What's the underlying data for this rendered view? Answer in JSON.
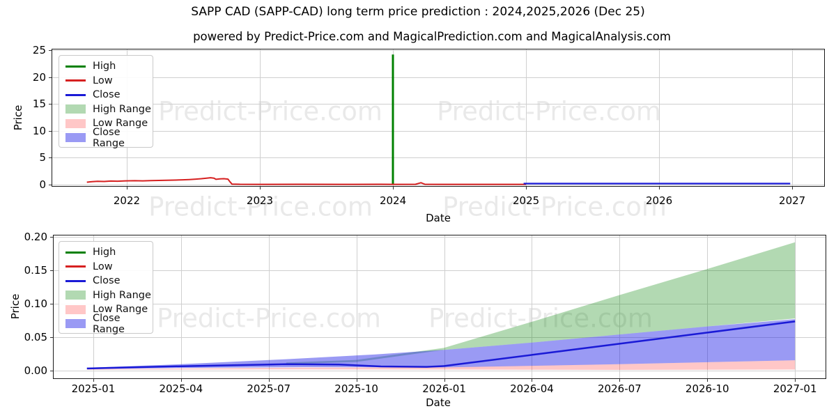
{
  "figure": {
    "title": "SAPP CAD (SAPP-CAD) long term price prediction : 2024,2025,2026 (Dec 25)",
    "subtitle": "powered by Predict-Price.com and MagicalPrediction.com and MagicalAnalysis.com",
    "watermark": "Predict-Price.com",
    "background": "#ffffff"
  },
  "colors": {
    "high": "#008000",
    "low": "#d62020",
    "close": "#1a1ad6",
    "high_fill": "rgba(0,128,0,0.30)",
    "low_fill": "rgba(255,40,40,0.26)",
    "close_fill": "rgba(25,25,230,0.44)",
    "grid": "#cfcfcf",
    "frame": "#1a1a1a",
    "text": "#000000"
  },
  "legend": {
    "items": [
      {
        "label": "High",
        "swatch": "line",
        "color_key": "high"
      },
      {
        "label": "Low",
        "swatch": "line",
        "color_key": "low"
      },
      {
        "label": "Close",
        "swatch": "line",
        "color_key": "close"
      },
      {
        "label": "High Range",
        "swatch": "patch",
        "color_key": "high_fill"
      },
      {
        "label": "Low Range",
        "swatch": "patch",
        "color_key": "low_fill"
      },
      {
        "label": "Close Range",
        "swatch": "patch",
        "color_key": "close_fill"
      }
    ]
  },
  "chart_data": [
    {
      "type": "line",
      "name": "full-history-price-chart",
      "xlabel": "Date",
      "ylabel": "Price",
      "grid": true,
      "legend_position": "upper left",
      "xlim": [
        2021.44,
        2027.24
      ],
      "ylim": [
        -0.26,
        25.15
      ],
      "xticks": [
        {
          "label": "2022",
          "x": 2022
        },
        {
          "label": "2023",
          "x": 2023
        },
        {
          "label": "2024",
          "x": 2024
        },
        {
          "label": "2025",
          "x": 2025
        },
        {
          "label": "2026",
          "x": 2026
        },
        {
          "label": "2027",
          "x": 2027
        }
      ],
      "yticks": [
        {
          "label": "0",
          "y": 0
        },
        {
          "label": "5",
          "y": 5
        },
        {
          "label": "10",
          "y": 10
        },
        {
          "label": "15",
          "y": 15
        },
        {
          "label": "20",
          "y": 20
        },
        {
          "label": "25",
          "y": 25
        }
      ],
      "series": [
        {
          "name": "high",
          "mode": "line",
          "color_key": "high",
          "width": 3,
          "points": [
            [
              2024.0,
              0.06
            ],
            [
              2024.0,
              24.2
            ]
          ]
        },
        {
          "name": "low",
          "mode": "line",
          "color_key": "low",
          "width": 2,
          "points": [
            [
              2021.7,
              0.45
            ],
            [
              2021.74,
              0.55
            ],
            [
              2021.78,
              0.62
            ],
            [
              2021.83,
              0.58
            ],
            [
              2021.88,
              0.66
            ],
            [
              2021.93,
              0.64
            ],
            [
              2021.99,
              0.7
            ],
            [
              2022.06,
              0.72
            ],
            [
              2022.12,
              0.7
            ],
            [
              2022.18,
              0.75
            ],
            [
              2022.24,
              0.78
            ],
            [
              2022.3,
              0.82
            ],
            [
              2022.36,
              0.84
            ],
            [
              2022.42,
              0.9
            ],
            [
              2022.47,
              0.94
            ],
            [
              2022.52,
              1.02
            ],
            [
              2022.56,
              1.1
            ],
            [
              2022.6,
              1.2
            ],
            [
              2022.63,
              1.28
            ],
            [
              2022.655,
              1.2
            ],
            [
              2022.67,
              0.98
            ],
            [
              2022.7,
              1.08
            ],
            [
              2022.73,
              1.1
            ],
            [
              2022.76,
              1.02
            ],
            [
              2022.775,
              0.55
            ],
            [
              2022.79,
              0.1
            ],
            [
              2022.85,
              0.06
            ],
            [
              2023.0,
              0.05
            ],
            [
              2023.3,
              0.06
            ],
            [
              2023.6,
              0.05
            ],
            [
              2023.9,
              0.06
            ],
            [
              2024.0,
              0.05
            ],
            [
              2024.17,
              0.06
            ],
            [
              2024.21,
              0.35
            ],
            [
              2024.24,
              0.06
            ],
            [
              2024.4,
              0.05
            ],
            [
              2024.7,
              0.05
            ],
            [
              2025.0,
              0.05
            ]
          ]
        },
        {
          "name": "close",
          "mode": "line",
          "color_key": "close",
          "width": 2.2,
          "points": [
            [
              2024.982,
              0.19
            ],
            [
              2026.985,
              0.19
            ]
          ]
        }
      ]
    },
    {
      "type": "line",
      "name": "forecast-zoom-chart",
      "xlabel": "Date",
      "ylabel": "Price",
      "grid": true,
      "legend_position": "upper left",
      "xlim": [
        2024.887,
        2027.087
      ],
      "ylim": [
        -0.0115,
        0.2021
      ],
      "xticks": [
        {
          "label": "2025-01",
          "x": 2025.0
        },
        {
          "label": "2025-04",
          "x": 2025.25
        },
        {
          "label": "2025-07",
          "x": 2025.5
        },
        {
          "label": "2025-10",
          "x": 2025.75
        },
        {
          "label": "2026-01",
          "x": 2026.0
        },
        {
          "label": "2026-04",
          "x": 2026.25
        },
        {
          "label": "2026-07",
          "x": 2026.5
        },
        {
          "label": "2026-10",
          "x": 2026.75
        },
        {
          "label": "2027-01",
          "x": 2027.0
        }
      ],
      "yticks": [
        {
          "label": "0.00",
          "y": 0.0
        },
        {
          "label": "0.05",
          "y": 0.05
        },
        {
          "label": "0.10",
          "y": 0.1
        },
        {
          "label": "0.15",
          "y": 0.15
        },
        {
          "label": "0.20",
          "y": 0.2
        }
      ],
      "series": [
        {
          "name": "high-range",
          "mode": "area",
          "color_key": "high_fill",
          "points": [
            [
              2025.55,
              0.012
            ],
            [
              2025.75,
              0.016
            ],
            [
              2026.0,
              0.034
            ],
            [
              2026.25,
              0.073
            ],
            [
              2026.5,
              0.113
            ],
            [
              2026.75,
              0.152
            ],
            [
              2027.0,
              0.192
            ],
            [
              2027.0,
              0.078
            ],
            [
              2026.75,
              0.066
            ],
            [
              2026.5,
              0.054
            ],
            [
              2026.25,
              0.042
            ],
            [
              2026.0,
              0.031
            ],
            [
              2025.75,
              0.013
            ],
            [
              2025.55,
              0.0095
            ]
          ]
        },
        {
          "name": "low-range",
          "mode": "area",
          "color_key": "low_fill",
          "points": [
            [
              2024.982,
              0.0022
            ],
            [
              2025.3,
              0.0035
            ],
            [
              2025.6,
              0.0045
            ],
            [
              2026.0,
              0.005
            ],
            [
              2026.5,
              0.0095
            ],
            [
              2027.0,
              0.0155
            ],
            [
              2027.0,
              0.0015
            ],
            [
              2026.5,
              0.001
            ],
            [
              2026.0,
              0.0015
            ],
            [
              2025.5,
              0.0018
            ],
            [
              2024.982,
              0.0012
            ]
          ]
        },
        {
          "name": "close-range",
          "mode": "area",
          "color_key": "close_fill",
          "points": [
            [
              2024.982,
              0.0042
            ],
            [
              2025.25,
              0.0095
            ],
            [
              2025.55,
              0.017
            ],
            [
              2025.8,
              0.024
            ],
            [
              2026.0,
              0.031
            ],
            [
              2026.25,
              0.042
            ],
            [
              2026.5,
              0.054
            ],
            [
              2026.75,
              0.066
            ],
            [
              2027.0,
              0.077
            ],
            [
              2027.0,
              0.0155
            ],
            [
              2026.5,
              0.0095
            ],
            [
              2026.0,
              0.0048
            ],
            [
              2025.6,
              0.0052
            ],
            [
              2025.25,
              0.004
            ],
            [
              2024.982,
              0.0022
            ]
          ]
        },
        {
          "name": "close",
          "mode": "line",
          "color_key": "close",
          "width": 2.5,
          "points": [
            [
              2024.982,
              0.0032
            ],
            [
              2025.1,
              0.0048
            ],
            [
              2025.25,
              0.0065
            ],
            [
              2025.4,
              0.008
            ],
            [
              2025.55,
              0.0095
            ],
            [
              2025.7,
              0.009
            ],
            [
              2025.82,
              0.0062
            ],
            [
              2025.95,
              0.0056
            ],
            [
              2026.0,
              0.0068
            ],
            [
              2026.25,
              0.0235
            ],
            [
              2026.5,
              0.0402
            ],
            [
              2026.75,
              0.0568
            ],
            [
              2027.0,
              0.0735
            ]
          ]
        }
      ]
    }
  ]
}
